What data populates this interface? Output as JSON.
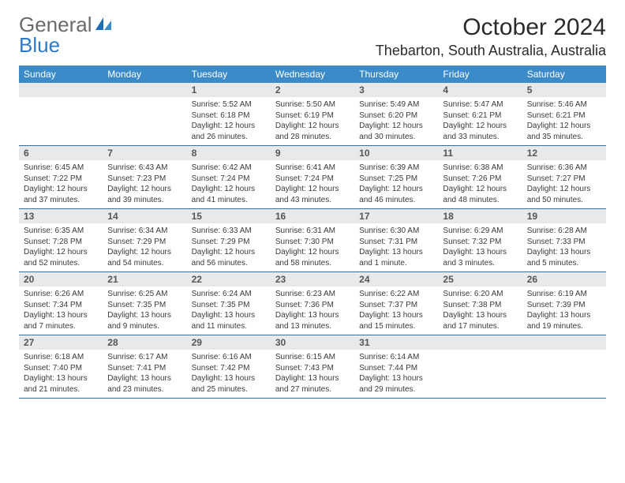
{
  "brand": {
    "general": "General",
    "blue": "Blue"
  },
  "title": "October 2024",
  "location": "Thebarton, South Australia, Australia",
  "colors": {
    "header_bg": "#3b8bc9",
    "header_text": "#ffffff",
    "daynum_bg": "#e9e9e9",
    "week_border": "#3b6fa0",
    "brand_gray": "#6b6b6b",
    "brand_blue": "#2d7ac2"
  },
  "dow": [
    "Sunday",
    "Monday",
    "Tuesday",
    "Wednesday",
    "Thursday",
    "Friday",
    "Saturday"
  ],
  "weeks": [
    [
      {
        "n": "",
        "lines": []
      },
      {
        "n": "",
        "lines": []
      },
      {
        "n": "1",
        "lines": [
          "Sunrise: 5:52 AM",
          "Sunset: 6:18 PM",
          "Daylight: 12 hours",
          "and 26 minutes."
        ]
      },
      {
        "n": "2",
        "lines": [
          "Sunrise: 5:50 AM",
          "Sunset: 6:19 PM",
          "Daylight: 12 hours",
          "and 28 minutes."
        ]
      },
      {
        "n": "3",
        "lines": [
          "Sunrise: 5:49 AM",
          "Sunset: 6:20 PM",
          "Daylight: 12 hours",
          "and 30 minutes."
        ]
      },
      {
        "n": "4",
        "lines": [
          "Sunrise: 5:47 AM",
          "Sunset: 6:21 PM",
          "Daylight: 12 hours",
          "and 33 minutes."
        ]
      },
      {
        "n": "5",
        "lines": [
          "Sunrise: 5:46 AM",
          "Sunset: 6:21 PM",
          "Daylight: 12 hours",
          "and 35 minutes."
        ]
      }
    ],
    [
      {
        "n": "6",
        "lines": [
          "Sunrise: 6:45 AM",
          "Sunset: 7:22 PM",
          "Daylight: 12 hours",
          "and 37 minutes."
        ]
      },
      {
        "n": "7",
        "lines": [
          "Sunrise: 6:43 AM",
          "Sunset: 7:23 PM",
          "Daylight: 12 hours",
          "and 39 minutes."
        ]
      },
      {
        "n": "8",
        "lines": [
          "Sunrise: 6:42 AM",
          "Sunset: 7:24 PM",
          "Daylight: 12 hours",
          "and 41 minutes."
        ]
      },
      {
        "n": "9",
        "lines": [
          "Sunrise: 6:41 AM",
          "Sunset: 7:24 PM",
          "Daylight: 12 hours",
          "and 43 minutes."
        ]
      },
      {
        "n": "10",
        "lines": [
          "Sunrise: 6:39 AM",
          "Sunset: 7:25 PM",
          "Daylight: 12 hours",
          "and 46 minutes."
        ]
      },
      {
        "n": "11",
        "lines": [
          "Sunrise: 6:38 AM",
          "Sunset: 7:26 PM",
          "Daylight: 12 hours",
          "and 48 minutes."
        ]
      },
      {
        "n": "12",
        "lines": [
          "Sunrise: 6:36 AM",
          "Sunset: 7:27 PM",
          "Daylight: 12 hours",
          "and 50 minutes."
        ]
      }
    ],
    [
      {
        "n": "13",
        "lines": [
          "Sunrise: 6:35 AM",
          "Sunset: 7:28 PM",
          "Daylight: 12 hours",
          "and 52 minutes."
        ]
      },
      {
        "n": "14",
        "lines": [
          "Sunrise: 6:34 AM",
          "Sunset: 7:29 PM",
          "Daylight: 12 hours",
          "and 54 minutes."
        ]
      },
      {
        "n": "15",
        "lines": [
          "Sunrise: 6:33 AM",
          "Sunset: 7:29 PM",
          "Daylight: 12 hours",
          "and 56 minutes."
        ]
      },
      {
        "n": "16",
        "lines": [
          "Sunrise: 6:31 AM",
          "Sunset: 7:30 PM",
          "Daylight: 12 hours",
          "and 58 minutes."
        ]
      },
      {
        "n": "17",
        "lines": [
          "Sunrise: 6:30 AM",
          "Sunset: 7:31 PM",
          "Daylight: 13 hours",
          "and 1 minute."
        ]
      },
      {
        "n": "18",
        "lines": [
          "Sunrise: 6:29 AM",
          "Sunset: 7:32 PM",
          "Daylight: 13 hours",
          "and 3 minutes."
        ]
      },
      {
        "n": "19",
        "lines": [
          "Sunrise: 6:28 AM",
          "Sunset: 7:33 PM",
          "Daylight: 13 hours",
          "and 5 minutes."
        ]
      }
    ],
    [
      {
        "n": "20",
        "lines": [
          "Sunrise: 6:26 AM",
          "Sunset: 7:34 PM",
          "Daylight: 13 hours",
          "and 7 minutes."
        ]
      },
      {
        "n": "21",
        "lines": [
          "Sunrise: 6:25 AM",
          "Sunset: 7:35 PM",
          "Daylight: 13 hours",
          "and 9 minutes."
        ]
      },
      {
        "n": "22",
        "lines": [
          "Sunrise: 6:24 AM",
          "Sunset: 7:35 PM",
          "Daylight: 13 hours",
          "and 11 minutes."
        ]
      },
      {
        "n": "23",
        "lines": [
          "Sunrise: 6:23 AM",
          "Sunset: 7:36 PM",
          "Daylight: 13 hours",
          "and 13 minutes."
        ]
      },
      {
        "n": "24",
        "lines": [
          "Sunrise: 6:22 AM",
          "Sunset: 7:37 PM",
          "Daylight: 13 hours",
          "and 15 minutes."
        ]
      },
      {
        "n": "25",
        "lines": [
          "Sunrise: 6:20 AM",
          "Sunset: 7:38 PM",
          "Daylight: 13 hours",
          "and 17 minutes."
        ]
      },
      {
        "n": "26",
        "lines": [
          "Sunrise: 6:19 AM",
          "Sunset: 7:39 PM",
          "Daylight: 13 hours",
          "and 19 minutes."
        ]
      }
    ],
    [
      {
        "n": "27",
        "lines": [
          "Sunrise: 6:18 AM",
          "Sunset: 7:40 PM",
          "Daylight: 13 hours",
          "and 21 minutes."
        ]
      },
      {
        "n": "28",
        "lines": [
          "Sunrise: 6:17 AM",
          "Sunset: 7:41 PM",
          "Daylight: 13 hours",
          "and 23 minutes."
        ]
      },
      {
        "n": "29",
        "lines": [
          "Sunrise: 6:16 AM",
          "Sunset: 7:42 PM",
          "Daylight: 13 hours",
          "and 25 minutes."
        ]
      },
      {
        "n": "30",
        "lines": [
          "Sunrise: 6:15 AM",
          "Sunset: 7:43 PM",
          "Daylight: 13 hours",
          "and 27 minutes."
        ]
      },
      {
        "n": "31",
        "lines": [
          "Sunrise: 6:14 AM",
          "Sunset: 7:44 PM",
          "Daylight: 13 hours",
          "and 29 minutes."
        ]
      },
      {
        "n": "",
        "lines": []
      },
      {
        "n": "",
        "lines": []
      }
    ]
  ]
}
